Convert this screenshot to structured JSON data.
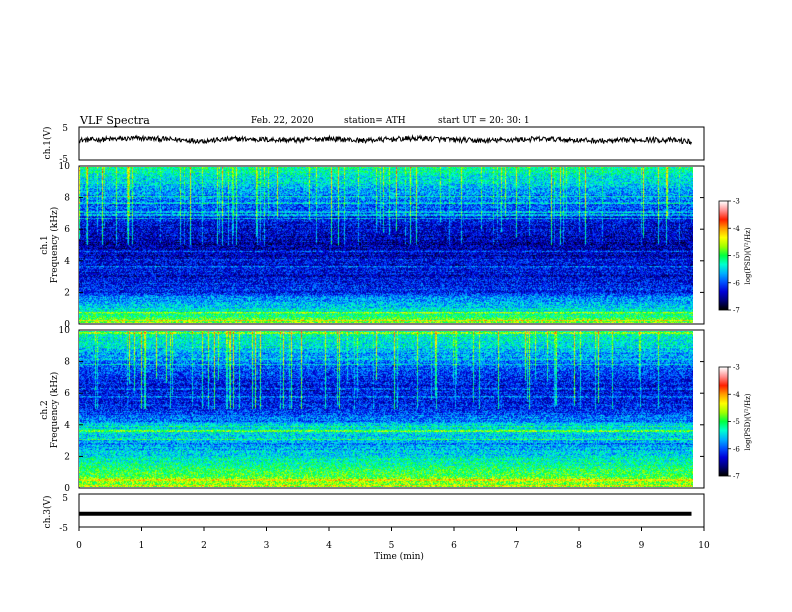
{
  "header": {
    "title": "VLF  Spectra",
    "date": "Feb. 22, 2020",
    "station": "station= ATH",
    "start": "start  UT  =    20: 30: 1"
  },
  "colors": {
    "axis": "#000000",
    "colormap": [
      "#000000",
      "#00007a",
      "#0000d8",
      "#0050ff",
      "#00b0ff",
      "#00ffd0",
      "#00ff40",
      "#a0ff00",
      "#ffff00",
      "#ffa000",
      "#ff2000",
      "#ff9090",
      "#ffffff"
    ]
  },
  "chart_data": [
    {
      "id": "ch1-waveform",
      "type": "line",
      "ylabel": "ch.1(V)",
      "ylim": [
        -5,
        5
      ],
      "yticks": [
        "5",
        "-5"
      ],
      "xlim": [
        0,
        10
      ],
      "series": [
        {
          "x": [
            0,
            0.5,
            1,
            1.5,
            2,
            2.5,
            3,
            3.5,
            4,
            4.5,
            5,
            5.5,
            6,
            6.5,
            7,
            7.5,
            8,
            8.5,
            9,
            9.5,
            9.8
          ],
          "y": [
            1.0,
            1.3,
            1.6,
            1.2,
            0.8,
            1.4,
            1.2,
            1.0,
            1.5,
            0.9,
            1.3,
            1.6,
            1.1,
            0.8,
            1.2,
            1.4,
            1.0,
            0.7,
            1.2,
            1.0,
            0.5
          ]
        }
      ]
    },
    {
      "id": "ch1-spectrogram",
      "type": "heatmap",
      "ylabel": "ch.1\nFrequency  (kHz)",
      "xlim": [
        0,
        9.8
      ],
      "ylim": [
        0,
        10
      ],
      "yticks": [
        "10",
        "8",
        "6",
        "4",
        "2",
        "0"
      ],
      "colorbar": {
        "label": "log(PSD)(V²/Hz)",
        "range": [
          -7,
          -3
        ],
        "ticks": [
          "-3",
          "-4",
          "-5",
          "-6",
          "-7"
        ]
      },
      "profile_log_psd": [
        {
          "f": 0.2,
          "v": -4.8
        },
        {
          "f": 0.7,
          "v": -5.4
        },
        {
          "f": 1.3,
          "v": -5.7
        },
        {
          "f": 2.2,
          "v": -6.2
        },
        {
          "f": 3.5,
          "v": -6.3
        },
        {
          "f": 5.0,
          "v": -6.5
        },
        {
          "f": 6.5,
          "v": -6.3
        },
        {
          "f": 7.8,
          "v": -5.9
        },
        {
          "f": 9.0,
          "v": -5.5
        },
        {
          "f": 10.0,
          "v": -5.2
        }
      ]
    },
    {
      "id": "ch2-spectrogram",
      "type": "heatmap",
      "ylabel": "ch.2\nFrequency  (kHz)",
      "xlim": [
        0,
        9.8
      ],
      "ylim": [
        0,
        10
      ],
      "yticks": [
        "10",
        "8",
        "6",
        "4",
        "2",
        "0"
      ],
      "colorbar": {
        "label": "log(PSD)(V²/Hz)",
        "range": [
          -7,
          -3
        ],
        "ticks": [
          "-3",
          "-4",
          "-5",
          "-6",
          "-7"
        ]
      },
      "profile_log_psd": [
        {
          "f": 0.2,
          "v": -4.7
        },
        {
          "f": 0.8,
          "v": -5.0
        },
        {
          "f": 1.5,
          "v": -5.2
        },
        {
          "f": 2.5,
          "v": -5.7
        },
        {
          "f": 3.6,
          "v": -5.4
        },
        {
          "f": 5.0,
          "v": -6.2
        },
        {
          "f": 6.5,
          "v": -6.3
        },
        {
          "f": 7.8,
          "v": -5.9
        },
        {
          "f": 9.0,
          "v": -5.5
        },
        {
          "f": 10.0,
          "v": -5.2
        }
      ]
    },
    {
      "id": "ch3-waveform",
      "type": "line",
      "ylabel": "ch.3(V)",
      "ylim": [
        -5,
        5
      ],
      "yticks": [
        "5",
        "0",
        "-5"
      ],
      "xlim": [
        0,
        10
      ],
      "xlabel": "Time  (min)",
      "xticks": [
        "0",
        "1",
        "2",
        "3",
        "4",
        "5",
        "6",
        "7",
        "8",
        "9",
        "10"
      ],
      "series": [
        {
          "x": [
            0,
            9.8
          ],
          "y": [
            -1,
            -1
          ]
        }
      ]
    }
  ]
}
